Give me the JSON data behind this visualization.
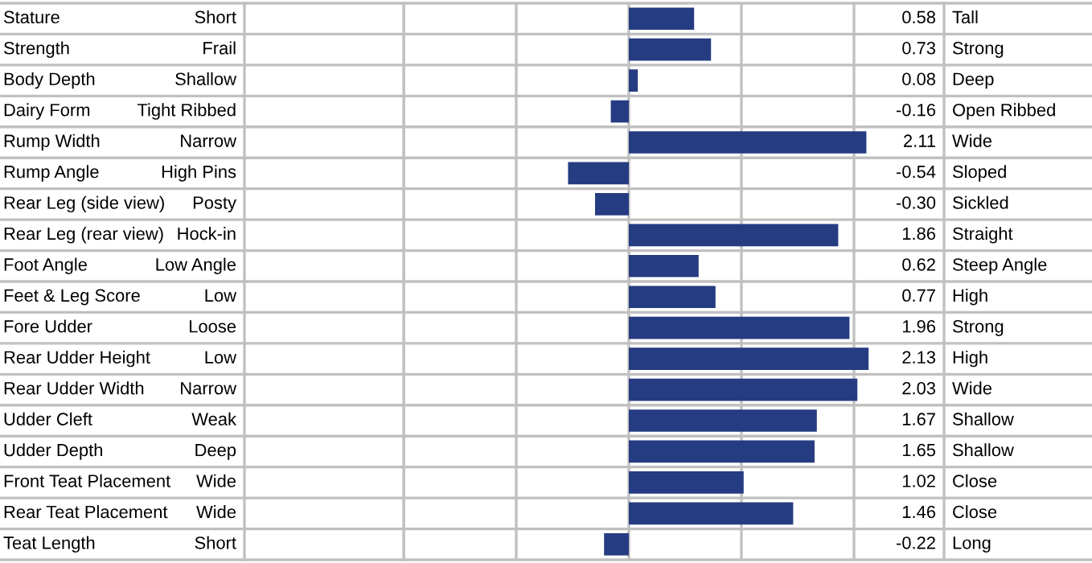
{
  "chart_data": {
    "type": "bar",
    "orientation": "horizontal",
    "categories": [
      "Stature",
      "Strength",
      "Body Depth",
      "Dairy Form",
      "Rump Width",
      "Rump Angle",
      "Rear Leg (side view)",
      "Rear Leg (rear view)",
      "Foot Angle",
      "Feet & Leg Score",
      "Fore Udder",
      "Rear Udder Height",
      "Rear Udder Width",
      "Udder Cleft",
      "Udder Depth",
      "Front Teat Placement",
      "Rear Teat Placement",
      "Teat Length"
    ],
    "values": [
      0.58,
      0.73,
      0.08,
      -0.16,
      2.11,
      -0.54,
      -0.3,
      1.86,
      0.62,
      0.77,
      1.96,
      2.13,
      2.03,
      1.67,
      1.65,
      1.02,
      1.46,
      -0.22
    ],
    "value_labels": [
      "0.58",
      "0.73",
      "0.08",
      "-0.16",
      "2.11",
      "-0.54",
      "-0.30",
      "1.86",
      "0.62",
      "0.77",
      "1.96",
      "2.13",
      "2.03",
      "1.67",
      "1.65",
      "1.02",
      "1.46",
      "-0.22"
    ],
    "color": "#263c82",
    "xlim": [
      -2,
      2.15
    ],
    "xticks": [
      {
        "value": -2,
        "label": null
      },
      {
        "value": -1,
        "label": null
      },
      {
        "value": 0,
        "label": null
      },
      {
        "value": 1,
        "label": null
      },
      {
        "value": 2,
        "label": null
      }
    ],
    "grid": "x",
    "annotations": [
      "Short",
      "Frail",
      "Shallow",
      "Tight Ribbed",
      "Narrow",
      "High Pins",
      "Posty",
      "Hock-in",
      "Low Angle",
      "Low",
      "Loose",
      "Low",
      "Narrow",
      "Weak",
      "Deep",
      "Wide",
      "Wide",
      "Short",
      "Tall",
      "Strong",
      "Deep",
      "Open Ribbed",
      "Wide",
      "Sloped",
      "Sickled",
      "Straight",
      "Steep Angle",
      "High",
      "Strong",
      "High",
      "Wide",
      "Shallow",
      "Shallow",
      "Close",
      "Close",
      "Long"
    ]
  }
}
